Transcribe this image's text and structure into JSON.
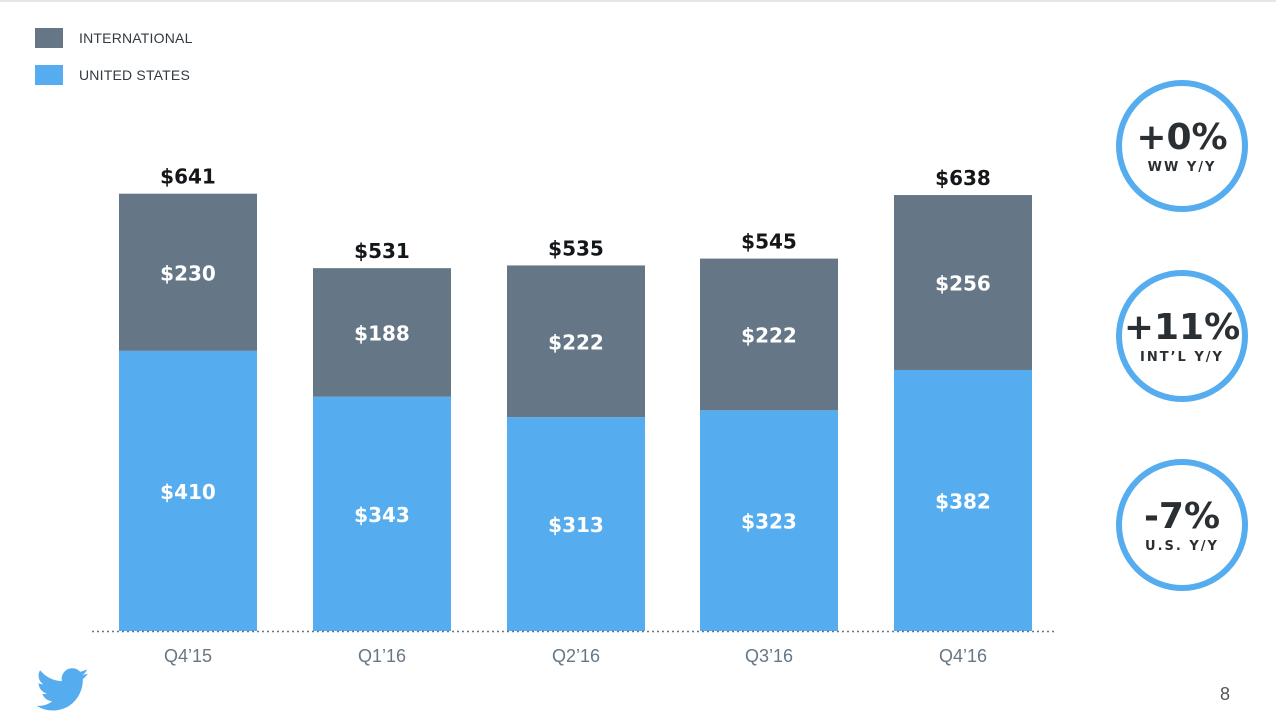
{
  "legend": [
    {
      "label": "INTERNATIONAL",
      "color": "#657786"
    },
    {
      "label": "UNITED STATES",
      "color": "#55acee"
    }
  ],
  "chart_data": {
    "type": "bar",
    "stacked": true,
    "categories": [
      "Q4’15",
      "Q1’16",
      "Q2’16",
      "Q3’16",
      "Q4’16"
    ],
    "series": [
      {
        "name": "UNITED STATES",
        "color": "#55acee",
        "values": [
          410,
          343,
          313,
          323,
          382
        ],
        "labels": [
          "$410",
          "$343",
          "$313",
          "$323",
          "$382"
        ]
      },
      {
        "name": "INTERNATIONAL",
        "color": "#657786",
        "values": [
          230,
          188,
          222,
          222,
          256
        ],
        "labels": [
          "$230",
          "$188",
          "$222",
          "$222",
          "$256"
        ]
      }
    ],
    "totals": [
      641,
      531,
      535,
      545,
      638
    ],
    "total_labels": [
      "$641",
      "$531",
      "$535",
      "$545",
      "$638"
    ],
    "ylim": [
      0,
      641
    ],
    "grid": false,
    "legend_position": "top-left"
  },
  "badges": [
    {
      "value": "+0%",
      "caption": "WW Y/Y"
    },
    {
      "value": "+11%",
      "caption": "INT’L Y/Y"
    },
    {
      "value": "-7%",
      "caption": "U.S. Y/Y"
    }
  ],
  "page_number": "8",
  "icons": {
    "logo": "twitter-bird-icon"
  }
}
